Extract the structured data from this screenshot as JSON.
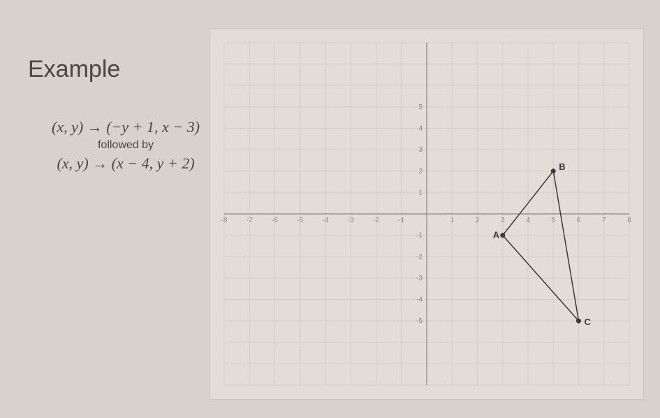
{
  "title": "Example",
  "formula1": "(x, y) → (−y + 1, x − 3)",
  "followed_by": "followed by",
  "formula2": "(x, y) → (x − 4, y + 2)",
  "chart": {
    "type": "scatter",
    "xlim": [
      -8,
      8
    ],
    "ylim": [
      -8,
      8
    ],
    "xtick_step": 1,
    "ytick_step": 1,
    "background_color": "#e2ded6",
    "grid_color": "#c9c4bb",
    "grid_color_light": "#d3cfc6",
    "axis_color": "#8a857c",
    "tick_label_color": "#8a857c",
    "tick_fontsize": 10,
    "point_color": "#3a3a3a",
    "line_color": "#3a3a3a",
    "line_width": 1.5,
    "point_radius": 3.5,
    "label_fontsize": 13,
    "label_color": "#3a3a3a",
    "points": {
      "A": {
        "x": 3,
        "y": -1,
        "label_dx": -14,
        "label_dy": 4
      },
      "B": {
        "x": 5,
        "y": 2,
        "label_dx": 8,
        "label_dy": -2
      },
      "C": {
        "x": 6,
        "y": -5,
        "label_dx": 8,
        "label_dy": 6
      }
    },
    "edges": [
      [
        "A",
        "B"
      ],
      [
        "B",
        "C"
      ],
      [
        "C",
        "A"
      ]
    ],
    "ytick_labels": {
      "5": "5",
      "4": "4",
      "3": "3",
      "2": "2",
      "1": "1",
      "-1": "-1",
      "-2": "-2",
      "-3": "-3",
      "-4": "-4",
      "-5": "-5"
    },
    "xtick_labels": {
      "-8": "-8",
      "-7": "-7",
      "-6": "-6",
      "-5": "-5",
      "-4": "-4",
      "-3": "-3",
      "-2": "-2",
      "-1": "-1",
      "1": "1",
      "2": "2",
      "3": "3",
      "4": "4",
      "5": "5",
      "6": "6",
      "7": "7",
      "8": "8"
    }
  }
}
